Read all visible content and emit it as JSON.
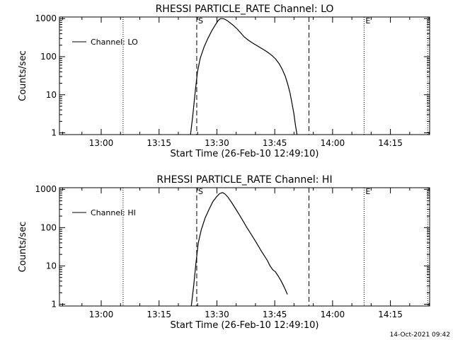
{
  "footer": {
    "timestamp": "14-Oct-2021 09:42"
  },
  "chart_data": [
    {
      "type": "line",
      "title": "RHESSI PARTICLE_RATE Channel: LO",
      "xlabel": "Start Time (26-Feb-10 12:49:10)",
      "ylabel": "Counts/sec",
      "yscale": "log",
      "xunits": "minutes after 12:49:10",
      "xlim": [
        0,
        96
      ],
      "ylim": [
        0.9,
        1100
      ],
      "x_ticks": [
        10.83,
        25.83,
        40.83,
        55.83,
        70.83,
        85.83
      ],
      "x_tick_labels": [
        "13:00",
        "13:15",
        "13:30",
        "13:45",
        "14:00",
        "14:15"
      ],
      "y_ticks": [
        1,
        10,
        100,
        1000
      ],
      "y_tick_labels": [
        "1",
        "10",
        "100",
        "1000"
      ],
      "legend": {
        "label": "Channel: LO",
        "position": "top-left"
      },
      "markers": [
        {
          "label": "S",
          "x": 35.6,
          "style": "dashed"
        },
        {
          "label": "",
          "x": 64.7,
          "style": "dashed"
        },
        {
          "label": "E",
          "x": 79.0,
          "style": "dotted"
        }
      ],
      "dotted_lines": [
        16.5,
        95.5
      ],
      "series": [
        {
          "name": "Channel: LO",
          "x": [
            34.0,
            34.6,
            35.2,
            35.8,
            36.5,
            37.5,
            38.5,
            39.5,
            40.5,
            41.2,
            41.8,
            42.3,
            42.8,
            43.4,
            44.2,
            45.2,
            46.2,
            47.0,
            47.9,
            49.0,
            50.2,
            51.4,
            52.6,
            53.8,
            55.0,
            56.0,
            57.0,
            57.8,
            58.6,
            59.2,
            59.8,
            60.3,
            60.8,
            61.2,
            61.6
          ],
          "y": [
            0.9,
            3.0,
            12,
            40,
            90,
            180,
            300,
            480,
            700,
            900,
            1000,
            1000,
            970,
            900,
            780,
            650,
            520,
            420,
            330,
            270,
            225,
            190,
            160,
            135,
            110,
            88,
            65,
            46,
            30,
            19,
            11,
            6,
            3.2,
            1.6,
            0.9
          ]
        }
      ]
    },
    {
      "type": "line",
      "title": "RHESSI PARTICLE_RATE Channel: HI",
      "xlabel": "Start Time (26-Feb-10 12:49:10)",
      "ylabel": "Counts/sec",
      "yscale": "log",
      "xunits": "minutes after 12:49:10",
      "xlim": [
        0,
        96
      ],
      "ylim": [
        0.9,
        1100
      ],
      "x_ticks": [
        10.83,
        25.83,
        40.83,
        55.83,
        70.83,
        85.83
      ],
      "x_tick_labels": [
        "13:00",
        "13:15",
        "13:30",
        "13:45",
        "14:00",
        "14:15"
      ],
      "y_ticks": [
        1,
        10,
        100,
        1000
      ],
      "y_tick_labels": [
        "1",
        "10",
        "100",
        "1000"
      ],
      "legend": {
        "label": "Channel: HI",
        "position": "top-left"
      },
      "markers": [
        {
          "label": "S",
          "x": 35.6,
          "style": "dashed"
        },
        {
          "label": "",
          "x": 64.7,
          "style": "dashed"
        },
        {
          "label": "E",
          "x": 79.0,
          "style": "dotted"
        }
      ],
      "dotted_lines": [
        16.5,
        95.5
      ],
      "series": [
        {
          "name": "Channel: HI",
          "x": [
            34.2,
            34.8,
            35.4,
            36.0,
            36.8,
            37.8,
            38.8,
            39.8,
            40.8,
            41.6,
            42.3,
            42.9,
            43.6,
            44.6,
            45.6,
            46.6,
            47.6,
            48.6,
            49.6,
            50.6,
            51.6,
            52.4,
            53.2,
            53.9,
            54.6,
            55.3,
            56.0,
            56.7,
            57.4,
            58.0,
            58.6,
            59.1
          ],
          "y": [
            0.9,
            3.0,
            12,
            40,
            90,
            180,
            300,
            480,
            650,
            780,
            820,
            760,
            640,
            460,
            320,
            220,
            150,
            100,
            70,
            48,
            33,
            24,
            18,
            14,
            10,
            8,
            7,
            5.5,
            4.2,
            3.2,
            2.4,
            1.8
          ]
        }
      ]
    }
  ]
}
